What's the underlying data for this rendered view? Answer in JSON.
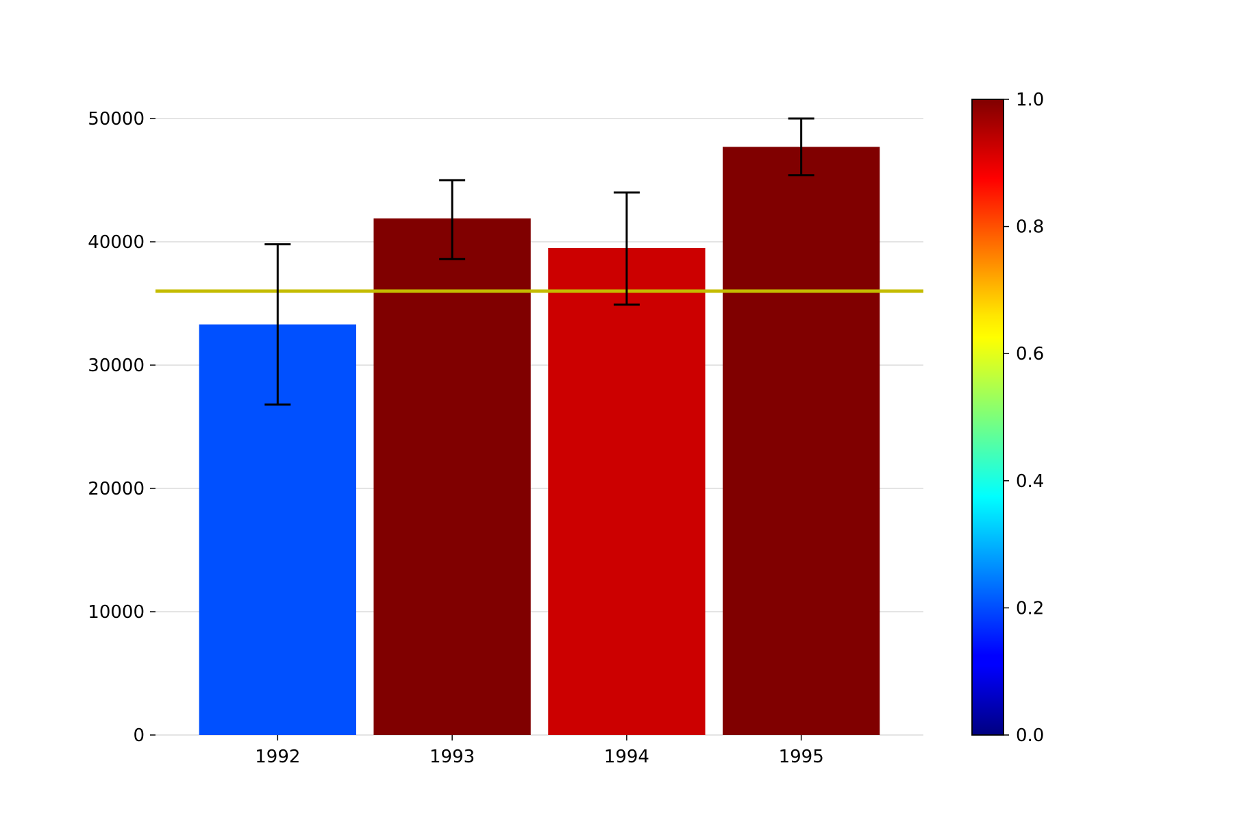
{
  "chart_data": {
    "type": "bar",
    "title": "",
    "xlabel": "",
    "ylabel": "",
    "categories": [
      "1992",
      "1993",
      "1994",
      "1995"
    ],
    "values": [
      33300,
      41900,
      39500,
      47700
    ],
    "error_low": [
      26800,
      38600,
      34900,
      45400
    ],
    "error_high": [
      39800,
      45000,
      44000,
      50000
    ],
    "bar_colors": [
      "#0050ff",
      "#800000",
      "#cc0000",
      "#800000"
    ],
    "reference_line": {
      "value": 36000,
      "color": "#c4bc00"
    },
    "ylim": [
      0,
      52500
    ],
    "yticks": [
      "0",
      "10000",
      "20000",
      "30000",
      "40000",
      "50000"
    ],
    "grid": "horizontal",
    "legend": "none",
    "colorbar": {
      "colormap": "jet",
      "range": [
        0.0,
        1.0
      ],
      "ticks": [
        "0.0",
        "0.2",
        "0.4",
        "0.6",
        "0.8",
        "1.0"
      ]
    }
  }
}
